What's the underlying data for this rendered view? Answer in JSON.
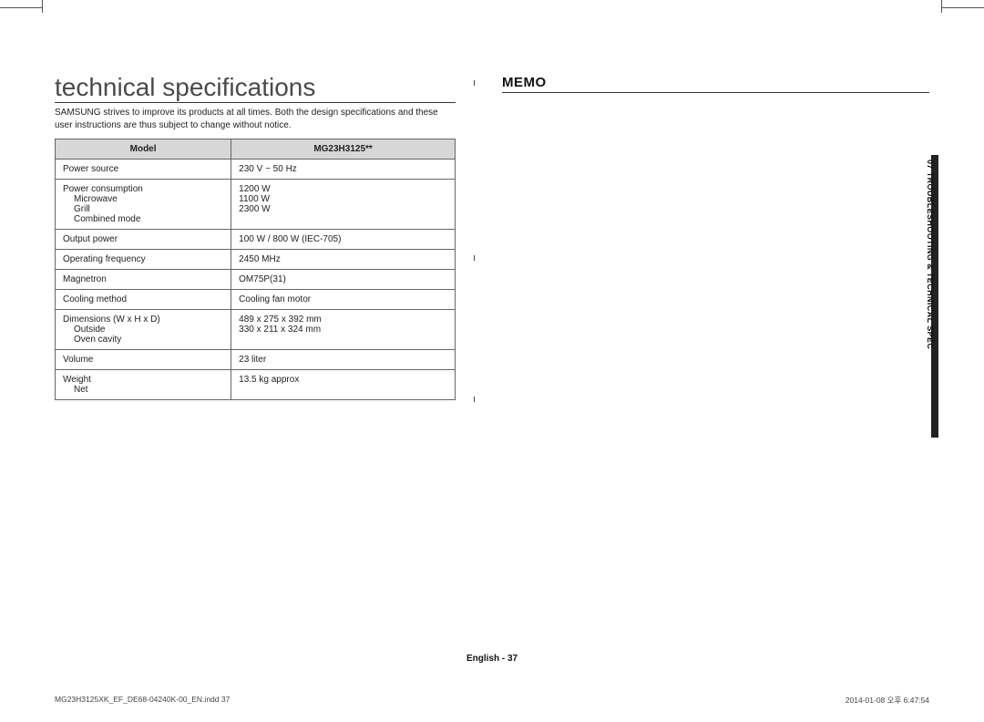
{
  "title": "technical specifications",
  "intro": "SAMSUNG strives to improve its products at all times. Both the design specifications and these user instructions are thus subject to change without notice.",
  "table": {
    "header_label": "Model",
    "header_value": "MG23H3125**",
    "rows": [
      {
        "label_main": "Power source",
        "value_lines": [
          "230 V ~ 50 Hz"
        ]
      },
      {
        "label_main": "Power consumption",
        "label_subs": [
          "Microwave",
          "Grill",
          "Combined mode"
        ],
        "value_lines": [
          "",
          "1200 W",
          "1100 W",
          "2300 W"
        ]
      },
      {
        "label_main": "Output power",
        "value_lines": [
          "100 W / 800 W (IEC-705)"
        ]
      },
      {
        "label_main": "Operating frequency",
        "value_lines": [
          "2450 MHz"
        ]
      },
      {
        "label_main": "Magnetron",
        "value_lines": [
          "OM75P(31)"
        ]
      },
      {
        "label_main": "Cooling method",
        "value_lines": [
          "Cooling fan motor"
        ]
      },
      {
        "label_main": "Dimensions (W x H x D)",
        "label_subs": [
          "Outside",
          "Oven cavity"
        ],
        "value_lines": [
          "",
          "489 x 275 x 392 mm",
          "330 x 211 x 324 mm"
        ]
      },
      {
        "label_main": "Volume",
        "value_lines": [
          "23 liter"
        ]
      },
      {
        "label_main": "Weight",
        "label_subs": [
          "Net"
        ],
        "value_lines": [
          "",
          "13.5 kg approx"
        ]
      }
    ]
  },
  "memo_title": "MEMO",
  "side_tab": "07  TROUBLESHOOTING & TECHNICAL SPEC",
  "page_foot": "English - 37",
  "imprint_left": "MG23H3125XK_EF_DE68-04240K-00_EN.indd   37",
  "imprint_right": "2014-01-08   오후 6:47:54"
}
